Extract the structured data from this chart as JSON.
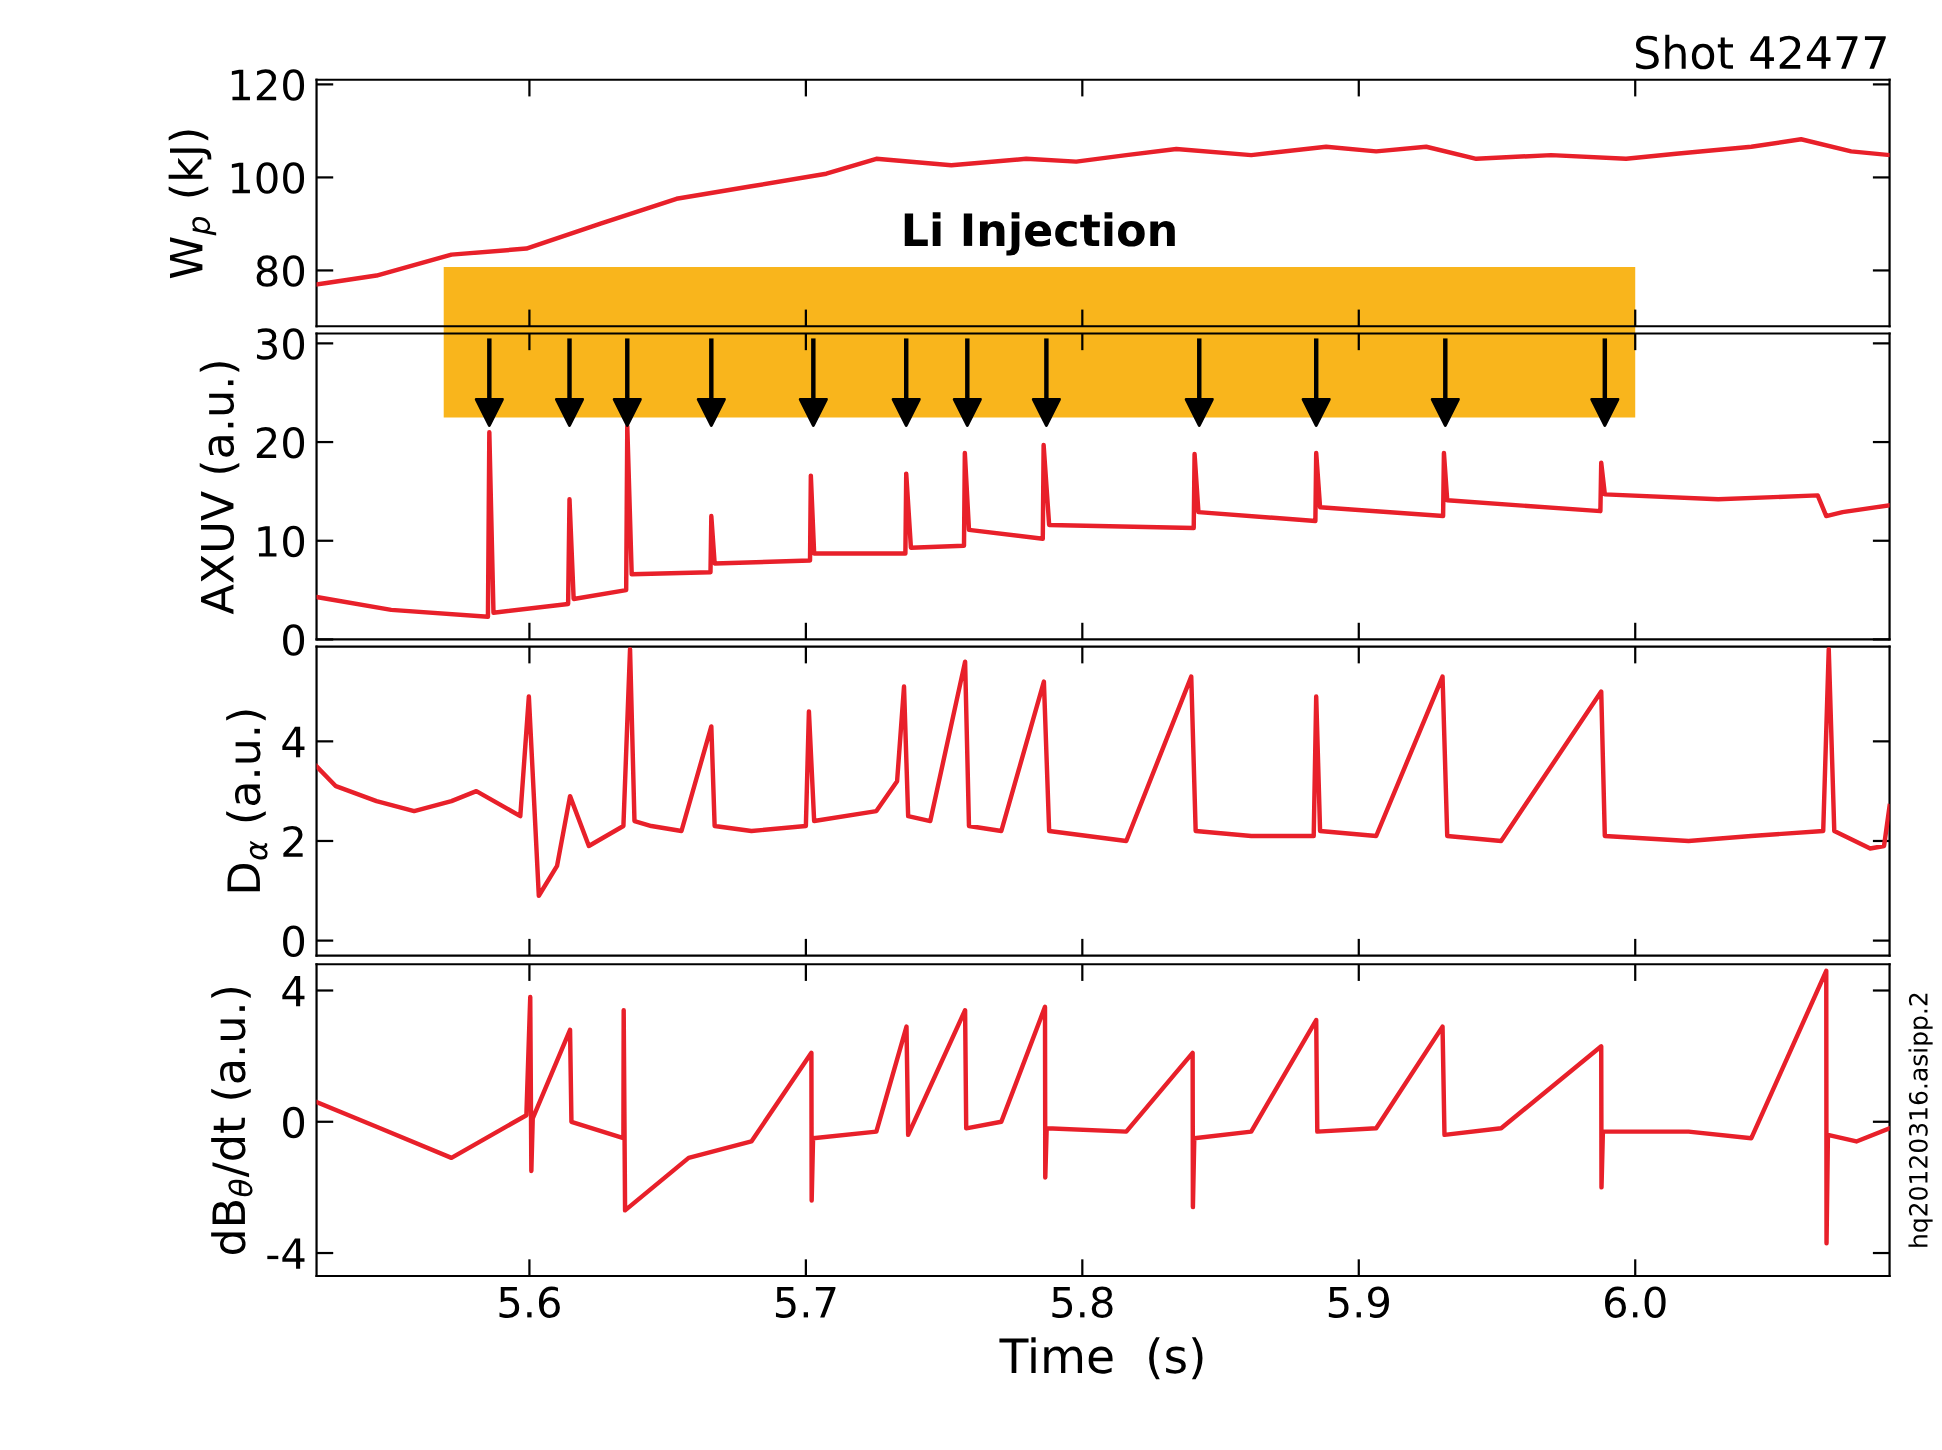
{
  "chart_data": [
    {
      "type": "line",
      "title": "Shot 42477",
      "ylabel": "W$_{p}$ (kJ)",
      "xlim": [
        5.523,
        6.092
      ],
      "xticks": [
        5.6,
        5.7,
        5.8,
        5.9,
        6.0
      ],
      "ylim": [
        68,
        121
      ],
      "yticks": [
        80,
        100,
        120
      ],
      "tick_labels": "y",
      "grid": false,
      "legend": false,
      "series": [
        {
          "color": "#e8202a",
          "x": [
            5.523,
            5.5266,
            5.5447,
            5.5718,
            5.5989,
            5.626,
            5.6532,
            5.6803,
            5.7074,
            5.7255,
            5.7526,
            5.7797,
            5.7978,
            5.8159,
            5.834,
            5.8611,
            5.8882,
            5.9063,
            5.9244,
            5.9425,
            5.9696,
            5.9967,
            6.0148,
            6.042,
            6.06,
            6.0781,
            6.092
          ],
          "values": [
            77,
            77.3,
            78.9,
            83.4,
            84.7,
            90.1,
            95.4,
            98.1,
            100.8,
            104.0,
            102.6,
            104.0,
            103.4,
            104.8,
            106.1,
            104.8,
            106.6,
            105.6,
            106.6,
            104.0,
            104.8,
            104.0,
            105.1,
            106.6,
            108.2,
            105.6,
            104.8
          ]
        }
      ]
    },
    {
      "type": "line",
      "ylabel": "AXUV (a.u.)",
      "xlim": [
        5.523,
        6.092
      ],
      "xticks": [
        5.6,
        5.7,
        5.8,
        5.9,
        6.0
      ],
      "ylim": [
        0,
        31
      ],
      "yticks": [
        0,
        10,
        20,
        30
      ],
      "tick_labels": "y",
      "grid": false,
      "legend": false,
      "bands": [
        {
          "axis": "x",
          "from": 5.569,
          "to": 6.0,
          "label": "Li Injection",
          "color": "#f9b51c"
        }
      ],
      "series": [
        {
          "color": "#e8202a",
          "x": [
            5.523,
            5.55,
            5.585,
            5.5855,
            5.587,
            5.614,
            5.6145,
            5.616,
            5.635,
            5.6354,
            5.637,
            5.6655,
            5.6658,
            5.667,
            5.7015,
            5.7018,
            5.703,
            5.736,
            5.7363,
            5.738,
            5.7572,
            5.7575,
            5.759,
            5.7857,
            5.786,
            5.788,
            5.8403,
            5.8406,
            5.842,
            5.8843,
            5.8846,
            5.886,
            5.9305,
            5.9308,
            5.932,
            5.9874,
            5.9877,
            5.989,
            6.03,
            6.066,
            6.0691,
            6.075,
            6.092
          ],
          "values": [
            4.3,
            3.0,
            2.3,
            21.0,
            2.7,
            3.6,
            14.2,
            4.1,
            5.0,
            21.6,
            6.6,
            6.8,
            12.5,
            7.7,
            8.0,
            16.6,
            8.7,
            8.7,
            16.8,
            9.3,
            9.5,
            18.9,
            11.1,
            10.2,
            19.7,
            11.6,
            11.3,
            18.8,
            12.9,
            12.0,
            18.9,
            13.4,
            12.5,
            18.9,
            14.1,
            13.0,
            17.9,
            14.7,
            14.2,
            14.6,
            12.5,
            12.9,
            13.6
          ]
        },
        {
          "type": "scatter",
          "color": "#000000",
          "marker": "triangle",
          "x": [
            5.5855,
            5.6145,
            5.6354,
            5.6658,
            5.7027,
            5.7363,
            5.7584,
            5.787,
            5.8423,
            5.8846,
            5.9313,
            5.989
          ],
          "values": [
            23,
            23,
            23,
            23,
            23,
            23,
            23,
            23,
            23,
            23,
            23,
            23
          ],
          "errors": [
            [
              23,
              30.5
            ],
            [
              23,
              30.5
            ],
            [
              23,
              30.5
            ],
            [
              23,
              30.5
            ],
            [
              23,
              30.5
            ],
            [
              23,
              30.5
            ],
            [
              23,
              30.5
            ],
            [
              23,
              30.5
            ],
            [
              23,
              30.5
            ],
            [
              23,
              30.5
            ],
            [
              23,
              30.5
            ],
            [
              23,
              30.5
            ]
          ]
        }
      ]
    },
    {
      "type": "line",
      "ylabel": "D$_{α}$ (a.u.)",
      "xlim": [
        5.523,
        6.092
      ],
      "xticks": [
        5.6,
        5.7,
        5.8,
        5.9,
        6.0
      ],
      "ylim": [
        -0.3,
        5.9
      ],
      "yticks": [
        0,
        2,
        4
      ],
      "tick_labels": "y",
      "grid": false,
      "legend": false,
      "series": [
        {
          "color": "#e8202a",
          "x": [
            5.523,
            5.53,
            5.5447,
            5.5583,
            5.5718,
            5.5808,
            5.5967,
            5.5998,
            5.6034,
            5.61,
            5.6147,
            5.6215,
            5.634,
            5.6364,
            5.638,
            5.6441,
            5.655,
            5.6658,
            5.667,
            5.6803,
            5.7,
            5.7011,
            5.703,
            5.7255,
            5.733,
            5.7355,
            5.737,
            5.745,
            5.7576,
            5.759,
            5.7707,
            5.7861,
            5.788,
            5.8159,
            5.8394,
            5.841,
            5.8611,
            5.8837,
            5.8846,
            5.886,
            5.9063,
            5.9303,
            5.932,
            5.9515,
            5.9877,
            5.989,
            6.0193,
            6.042,
            6.068,
            6.07,
            6.072,
            6.085,
            6.09,
            6.092
          ],
          "values": [
            3.5,
            3.1,
            2.8,
            2.6,
            2.8,
            3.0,
            2.5,
            4.9,
            0.9,
            1.5,
            2.9,
            1.9,
            2.3,
            5.85,
            2.4,
            2.3,
            2.2,
            4.3,
            2.3,
            2.2,
            2.3,
            4.6,
            2.4,
            2.6,
            3.2,
            5.1,
            2.5,
            2.4,
            5.6,
            2.3,
            2.2,
            5.2,
            2.2,
            2.0,
            5.3,
            2.2,
            2.1,
            2.1,
            4.9,
            2.2,
            2.1,
            5.3,
            2.1,
            2.0,
            5.0,
            2.1,
            2.0,
            2.1,
            2.2,
            5.85,
            2.2,
            1.85,
            1.9,
            2.7
          ]
        }
      ]
    },
    {
      "type": "line",
      "xlabel": "Time  (s)",
      "ylabel": "dB$_{θ}$/dt (a.u.)",
      "xlim": [
        5.523,
        6.092
      ],
      "xticks": [
        5.6,
        5.7,
        5.8,
        5.9,
        {
          "value": 6.0,
          "label": "6.0"
        }
      ],
      "ylim": [
        -4.7,
        4.8
      ],
      "yticks": [
        -4,
        0,
        4
      ],
      "grid": false,
      "legend": false,
      "annotations": [
        "hq20120316.asipp.2"
      ],
      "series": [
        {
          "color": "#e8202a",
          "x": [
            5.523,
            5.5447,
            5.5718,
            5.5989,
            5.6003,
            5.6007,
            5.6012,
            5.6147,
            5.6152,
            5.634,
            5.6341,
            5.6346,
            5.6576,
            5.6803,
            5.702,
            5.7021,
            5.7026,
            5.7255,
            5.7364,
            5.737,
            5.7576,
            5.758,
            5.7707,
            5.7865,
            5.7866,
            5.7871,
            5.8159,
            5.8399,
            5.84,
            5.8405,
            5.8611,
            5.8846,
            5.885,
            5.9063,
            5.9303,
            5.931,
            5.9515,
            5.9877,
            5.9878,
            5.9883,
            6.0193,
            6.042,
            6.0691,
            6.0692,
            6.0697,
            6.08,
            6.092
          ],
          "values": [
            0.6,
            -0.15,
            -1.1,
            0.2,
            3.8,
            -1.5,
            0.1,
            2.8,
            0.0,
            -0.5,
            3.4,
            -2.7,
            -1.1,
            -0.6,
            2.1,
            -2.4,
            -0.5,
            -0.3,
            2.9,
            -0.4,
            3.4,
            -0.2,
            0.0,
            3.5,
            -1.7,
            -0.2,
            -0.3,
            2.1,
            -2.6,
            -0.5,
            -0.3,
            3.1,
            -0.3,
            -0.2,
            2.9,
            -0.4,
            -0.2,
            2.3,
            -2.0,
            -0.3,
            -0.3,
            -0.5,
            4.6,
            -3.7,
            -0.4,
            -0.6,
            -0.2
          ]
        }
      ]
    }
  ]
}
